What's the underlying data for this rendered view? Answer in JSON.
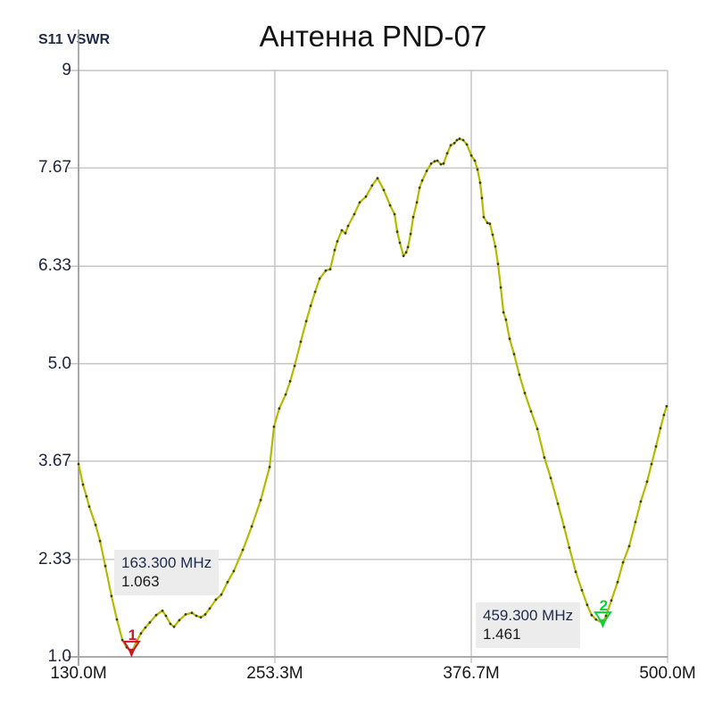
{
  "header": {
    "corner_label": "S11 VSWR",
    "title": "Антенна PND-07"
  },
  "colors": {
    "grid": "#c3c3c3",
    "axis": "#9a9a9a",
    "trace": "#b3ba00",
    "trace_dot": "#3f3f0e",
    "marker1": "#cc1624",
    "marker2": "#0fd03c",
    "annotation_bg": "#ececec",
    "freq_text": "#1c2b4a",
    "value_text": "#1a1a1a"
  },
  "chart_data": {
    "type": "line",
    "title": "Антенна PND-07",
    "ylabel": "S11 VSWR",
    "xlabel": "",
    "x_unit": "MHz",
    "xlim": [
      130,
      500
    ],
    "ylim": [
      1,
      9
    ],
    "grid": true,
    "x_ticks": [
      {
        "label": "130.0M",
        "value": 130.0
      },
      {
        "label": "253.3M",
        "value": 253.3
      },
      {
        "label": "376.7M",
        "value": 376.7
      },
      {
        "label": "500.0M",
        "value": 500.0
      }
    ],
    "y_ticks": [
      {
        "label": "9",
        "value": 9
      },
      {
        "label": "7.67",
        "value": 7.67
      },
      {
        "label": "6.33",
        "value": 6.33
      },
      {
        "label": "5.0",
        "value": 5.0
      },
      {
        "label": "3.67",
        "value": 3.67
      },
      {
        "label": "2.33",
        "value": 2.33
      },
      {
        "label": "1.0",
        "value": 1.0
      }
    ],
    "series": [
      {
        "name": "S11 VSWR",
        "color": "#b3ba00",
        "points": [
          [
            130.0,
            3.63
          ],
          [
            132.8,
            3.35
          ],
          [
            135.0,
            3.19
          ],
          [
            136.7,
            3.05
          ],
          [
            140.7,
            2.8
          ],
          [
            143.5,
            2.58
          ],
          [
            146.8,
            2.24
          ],
          [
            150.7,
            1.83
          ],
          [
            154.1,
            1.51
          ],
          [
            157.5,
            1.23
          ],
          [
            160.3,
            1.13
          ],
          [
            163.3,
            1.063
          ],
          [
            166.4,
            1.21
          ],
          [
            169.2,
            1.32
          ],
          [
            172.0,
            1.4
          ],
          [
            174.8,
            1.47
          ],
          [
            178.8,
            1.57
          ],
          [
            182.7,
            1.63
          ],
          [
            184.9,
            1.56
          ],
          [
            187.7,
            1.45
          ],
          [
            190.0,
            1.41
          ],
          [
            193.3,
            1.5
          ],
          [
            197.3,
            1.58
          ],
          [
            201.2,
            1.6
          ],
          [
            204.0,
            1.56
          ],
          [
            206.8,
            1.54
          ],
          [
            209.6,
            1.58
          ],
          [
            212.4,
            1.66
          ],
          [
            216.3,
            1.78
          ],
          [
            219.7,
            1.85
          ],
          [
            223.6,
            2.02
          ],
          [
            227.5,
            2.17
          ],
          [
            233.2,
            2.46
          ],
          [
            238.8,
            2.78
          ],
          [
            244.4,
            3.14
          ],
          [
            250.0,
            3.59
          ],
          [
            252.8,
            4.14
          ],
          [
            256.1,
            4.39
          ],
          [
            260.1,
            4.58
          ],
          [
            262.9,
            4.76
          ],
          [
            265.7,
            4.97
          ],
          [
            269.6,
            5.3
          ],
          [
            273.0,
            5.58
          ],
          [
            275.8,
            5.79
          ],
          [
            278.6,
            5.98
          ],
          [
            281.4,
            6.16
          ],
          [
            285.3,
            6.27
          ],
          [
            288.1,
            6.29
          ],
          [
            290.9,
            6.55
          ],
          [
            292.6,
            6.67
          ],
          [
            295.4,
            6.82
          ],
          [
            297.6,
            6.78
          ],
          [
            299.3,
            6.88
          ],
          [
            303.2,
            7.04
          ],
          [
            306.6,
            7.2
          ],
          [
            310.5,
            7.28
          ],
          [
            314.4,
            7.43
          ],
          [
            317.8,
            7.53
          ],
          [
            321.7,
            7.37
          ],
          [
            325.7,
            7.16
          ],
          [
            328.5,
            7.04
          ],
          [
            330.2,
            6.8
          ],
          [
            331.8,
            6.65
          ],
          [
            334.1,
            6.47
          ],
          [
            335.8,
            6.52
          ],
          [
            336.9,
            6.59
          ],
          [
            338.6,
            6.77
          ],
          [
            340.2,
            7.0
          ],
          [
            342.5,
            7.2
          ],
          [
            344.2,
            7.4
          ],
          [
            345.9,
            7.5
          ],
          [
            348.7,
            7.63
          ],
          [
            351.5,
            7.73
          ],
          [
            353.7,
            7.76
          ],
          [
            355.4,
            7.77
          ],
          [
            357.6,
            7.72
          ],
          [
            359.3,
            7.73
          ],
          [
            361.6,
            7.87
          ],
          [
            363.8,
            7.98
          ],
          [
            366.1,
            8.01
          ],
          [
            367.7,
            8.05
          ],
          [
            369.4,
            8.07
          ],
          [
            371.6,
            8.05
          ],
          [
            373.9,
            7.99
          ],
          [
            376.7,
            7.84
          ],
          [
            378.9,
            7.77
          ],
          [
            380.6,
            7.65
          ],
          [
            382.3,
            7.47
          ],
          [
            383.4,
            7.26
          ],
          [
            384.5,
            7.0
          ],
          [
            386.8,
            6.92
          ],
          [
            388.4,
            6.91
          ],
          [
            390.1,
            6.76
          ],
          [
            391.8,
            6.6
          ],
          [
            393.5,
            6.36
          ],
          [
            395.2,
            6.04
          ],
          [
            396.9,
            5.7
          ],
          [
            398.5,
            5.6
          ],
          [
            400.8,
            5.34
          ],
          [
            403.6,
            5.13
          ],
          [
            406.9,
            4.85
          ],
          [
            410.3,
            4.6
          ],
          [
            414.2,
            4.35
          ],
          [
            418.2,
            4.11
          ],
          [
            422.6,
            3.72
          ],
          [
            426.6,
            3.44
          ],
          [
            431.1,
            3.09
          ],
          [
            435.0,
            2.77
          ],
          [
            438.3,
            2.49
          ],
          [
            442.3,
            2.16
          ],
          [
            446.2,
            1.91
          ],
          [
            449.5,
            1.71
          ],
          [
            452.3,
            1.57
          ],
          [
            455.1,
            1.51
          ],
          [
            459.3,
            1.461
          ],
          [
            461.3,
            1.56
          ],
          [
            464.7,
            1.77
          ],
          [
            468.6,
            2.02
          ],
          [
            472.0,
            2.29
          ],
          [
            475.9,
            2.51
          ],
          [
            479.8,
            2.84
          ],
          [
            483.2,
            3.12
          ],
          [
            487.1,
            3.39
          ],
          [
            489.9,
            3.63
          ],
          [
            492.7,
            3.87
          ],
          [
            495.5,
            4.12
          ],
          [
            497.7,
            4.3
          ],
          [
            499.4,
            4.42
          ]
        ]
      }
    ],
    "markers": [
      {
        "id": "1",
        "freq_mhz": 163.3,
        "value": 1.063,
        "freq_label": "163.300 MHz",
        "value_label": "1.063",
        "color": "#cc1624",
        "box_left": 128,
        "box_top": 616
      },
      {
        "id": "2",
        "freq_mhz": 459.3,
        "value": 1.461,
        "freq_label": "459.300 MHz",
        "value_label": "1.461",
        "color": "#0fd03c",
        "box_left": 533,
        "box_top": 675
      }
    ]
  }
}
